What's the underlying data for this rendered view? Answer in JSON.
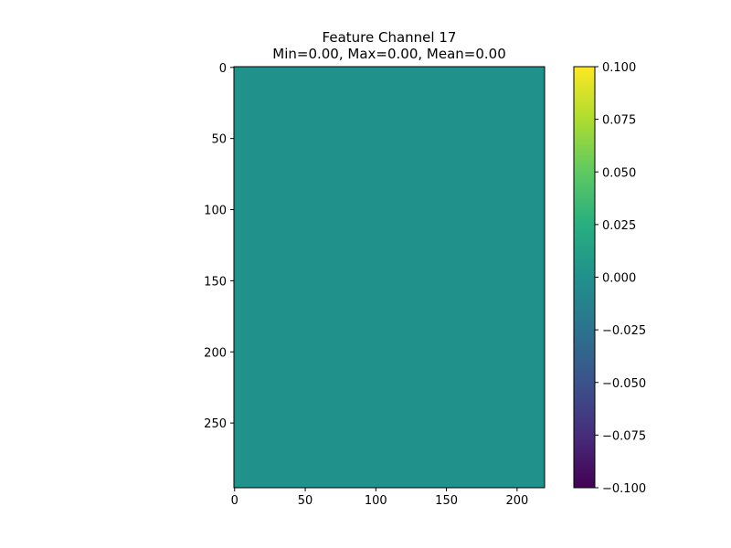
{
  "chart_data": {
    "type": "heatmap",
    "title": "Feature Channel 17",
    "subtitle": "Min=0.00, Max=0.00, Mean=0.00",
    "xlabel": "",
    "ylabel": "",
    "image_width": 220,
    "image_height": 296,
    "uniform_value": 0.0,
    "cell_color": "#21918c",
    "x_ticks": [
      0,
      50,
      100,
      150,
      200
    ],
    "y_ticks": [
      0,
      50,
      100,
      150,
      200,
      250
    ],
    "y_inverted": true,
    "colormap": "viridis",
    "colorbar": {
      "vmin": -0.1,
      "vmax": 0.1,
      "ticks": [
        -0.1,
        -0.075,
        -0.05,
        -0.025,
        0.0,
        0.025,
        0.05,
        0.075,
        0.1
      ],
      "tick_labels": [
        "−0.100",
        "−0.075",
        "−0.050",
        "−0.025",
        "0.000",
        "0.025",
        "0.050",
        "0.075",
        "0.100"
      ]
    },
    "grid": false,
    "legend": "none"
  }
}
